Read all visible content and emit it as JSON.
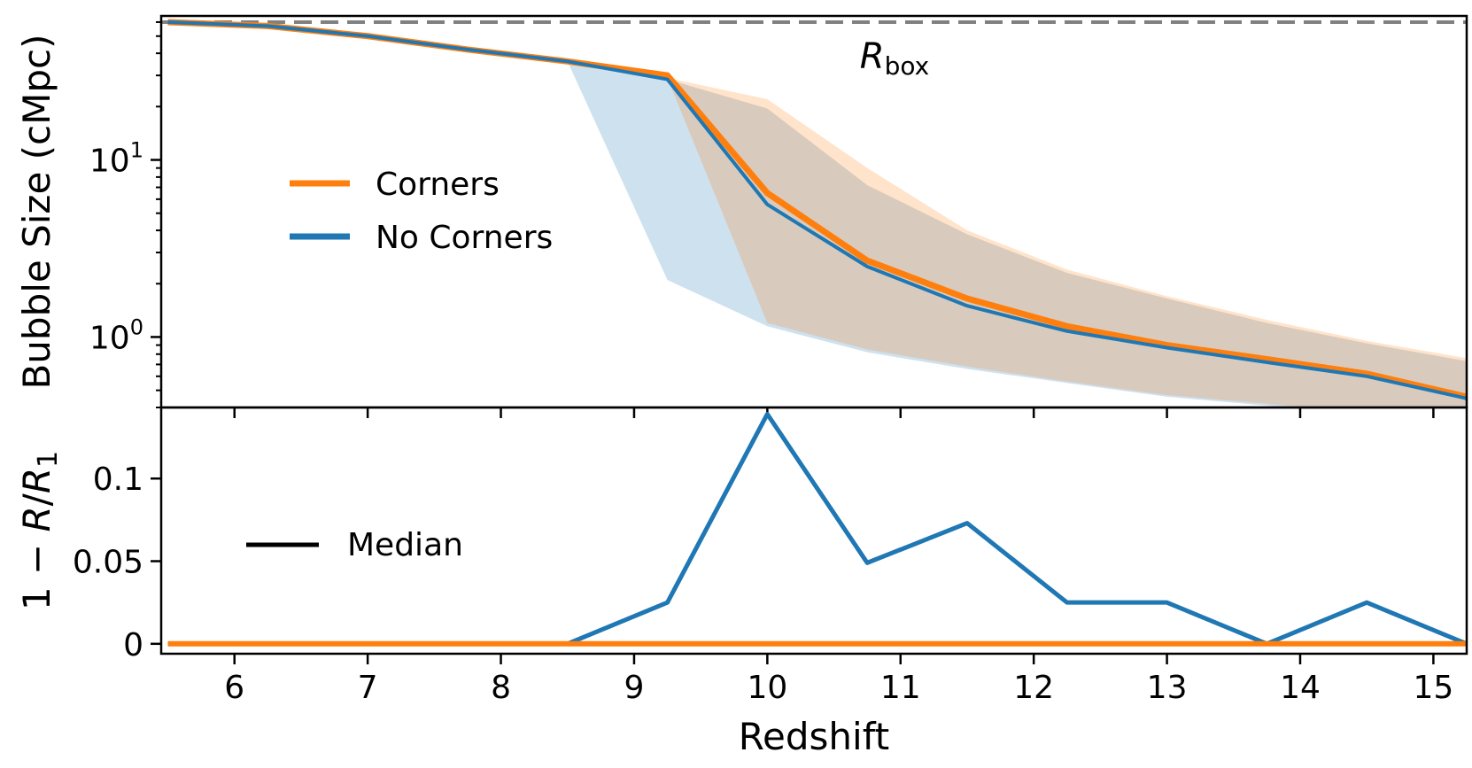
{
  "chart_data": [
    {
      "panel": "top",
      "type": "line",
      "ylabel": "Bubble Size  (cMpc)",
      "yscale": "log",
      "ylim": [
        0.4,
        65
      ],
      "xlim": [
        5.45,
        15.25
      ],
      "yticks": [
        {
          "value": 1,
          "base": "10",
          "exp": "0"
        },
        {
          "value": 10,
          "base": "10",
          "exp": "1"
        }
      ],
      "reference_line": {
        "value": 60,
        "label_main": "R",
        "label_sub": "box",
        "color": "#808080"
      },
      "legend": {
        "placement": "upper-left",
        "entries": [
          {
            "label": "Corners",
            "color": "#ff7f0e"
          },
          {
            "label": "No Corners",
            "color": "#1f77b4"
          }
        ]
      },
      "x": [
        5.5,
        6.25,
        7.0,
        7.75,
        8.5,
        9.25,
        10.0,
        10.75,
        11.5,
        12.25,
        13.0,
        13.75,
        14.5,
        15.25
      ],
      "series": [
        {
          "name": "Corners",
          "color": "#ff7f0e",
          "values": [
            60,
            57,
            50,
            42,
            36,
            30,
            6.5,
            2.7,
            1.65,
            1.15,
            0.9,
            0.75,
            0.62,
            0.46
          ],
          "band_low": [
            60,
            57,
            50,
            42,
            36,
            29,
            1.2,
            0.85,
            0.68,
            0.56,
            0.47,
            0.42,
            0.37,
            0.33
          ],
          "band_high": [
            60,
            57,
            50,
            42,
            36,
            29,
            22,
            9.0,
            4.0,
            2.4,
            1.7,
            1.25,
            0.95,
            0.76
          ]
        },
        {
          "name": "No Corners",
          "color": "#1f77b4",
          "values": [
            60,
            57,
            50,
            42,
            36,
            28.5,
            5.6,
            2.5,
            1.5,
            1.08,
            0.87,
            0.72,
            0.6,
            0.45
          ],
          "band_low": [
            60,
            57,
            50,
            42,
            36,
            2.1,
            1.15,
            0.82,
            0.66,
            0.55,
            0.46,
            0.41,
            0.36,
            0.32
          ],
          "band_high": [
            60,
            57,
            50,
            42,
            36,
            28.5,
            19.5,
            7.2,
            3.8,
            2.3,
            1.65,
            1.2,
            0.92,
            0.73
          ]
        }
      ]
    },
    {
      "panel": "bottom",
      "type": "line",
      "xlabel": "Redshift",
      "ylabel_parts": [
        "1 − ",
        "R",
        "/",
        "R",
        "1"
      ],
      "ylim": [
        -0.006,
        0.143
      ],
      "xlim": [
        5.45,
        15.25
      ],
      "yticks": [
        {
          "value": 0,
          "label": "0"
        },
        {
          "value": 0.05,
          "label": "0.05"
        },
        {
          "value": 0.1,
          "label": "0.1"
        }
      ],
      "xticks": [
        {
          "value": 6,
          "label": "6"
        },
        {
          "value": 7,
          "label": "7"
        },
        {
          "value": 8,
          "label": "8"
        },
        {
          "value": 9,
          "label": "9"
        },
        {
          "value": 10,
          "label": "10"
        },
        {
          "value": 11,
          "label": "11"
        },
        {
          "value": 12,
          "label": "12"
        },
        {
          "value": 13,
          "label": "13"
        },
        {
          "value": 14,
          "label": "14"
        },
        {
          "value": 15,
          "label": "15"
        }
      ],
      "legend": {
        "placement": "center-left",
        "entries": [
          {
            "label": "Median",
            "color": "#000000"
          }
        ]
      },
      "x": [
        5.5,
        6.25,
        7.0,
        7.75,
        8.5,
        9.25,
        10.0,
        10.75,
        11.5,
        12.25,
        13.0,
        13.75,
        14.5,
        15.25
      ],
      "series": [
        {
          "name": "No Corners",
          "color": "#1f77b4",
          "values": [
            0,
            0,
            0,
            0,
            0,
            0.025,
            0.139,
            0.049,
            0.073,
            0.025,
            0.025,
            0,
            0.025,
            0
          ]
        },
        {
          "name": "Corners",
          "color": "#ff7f0e",
          "values": [
            0,
            0,
            0,
            0,
            0,
            0,
            0,
            0,
            0,
            0,
            0,
            0,
            0,
            0
          ]
        }
      ]
    }
  ]
}
